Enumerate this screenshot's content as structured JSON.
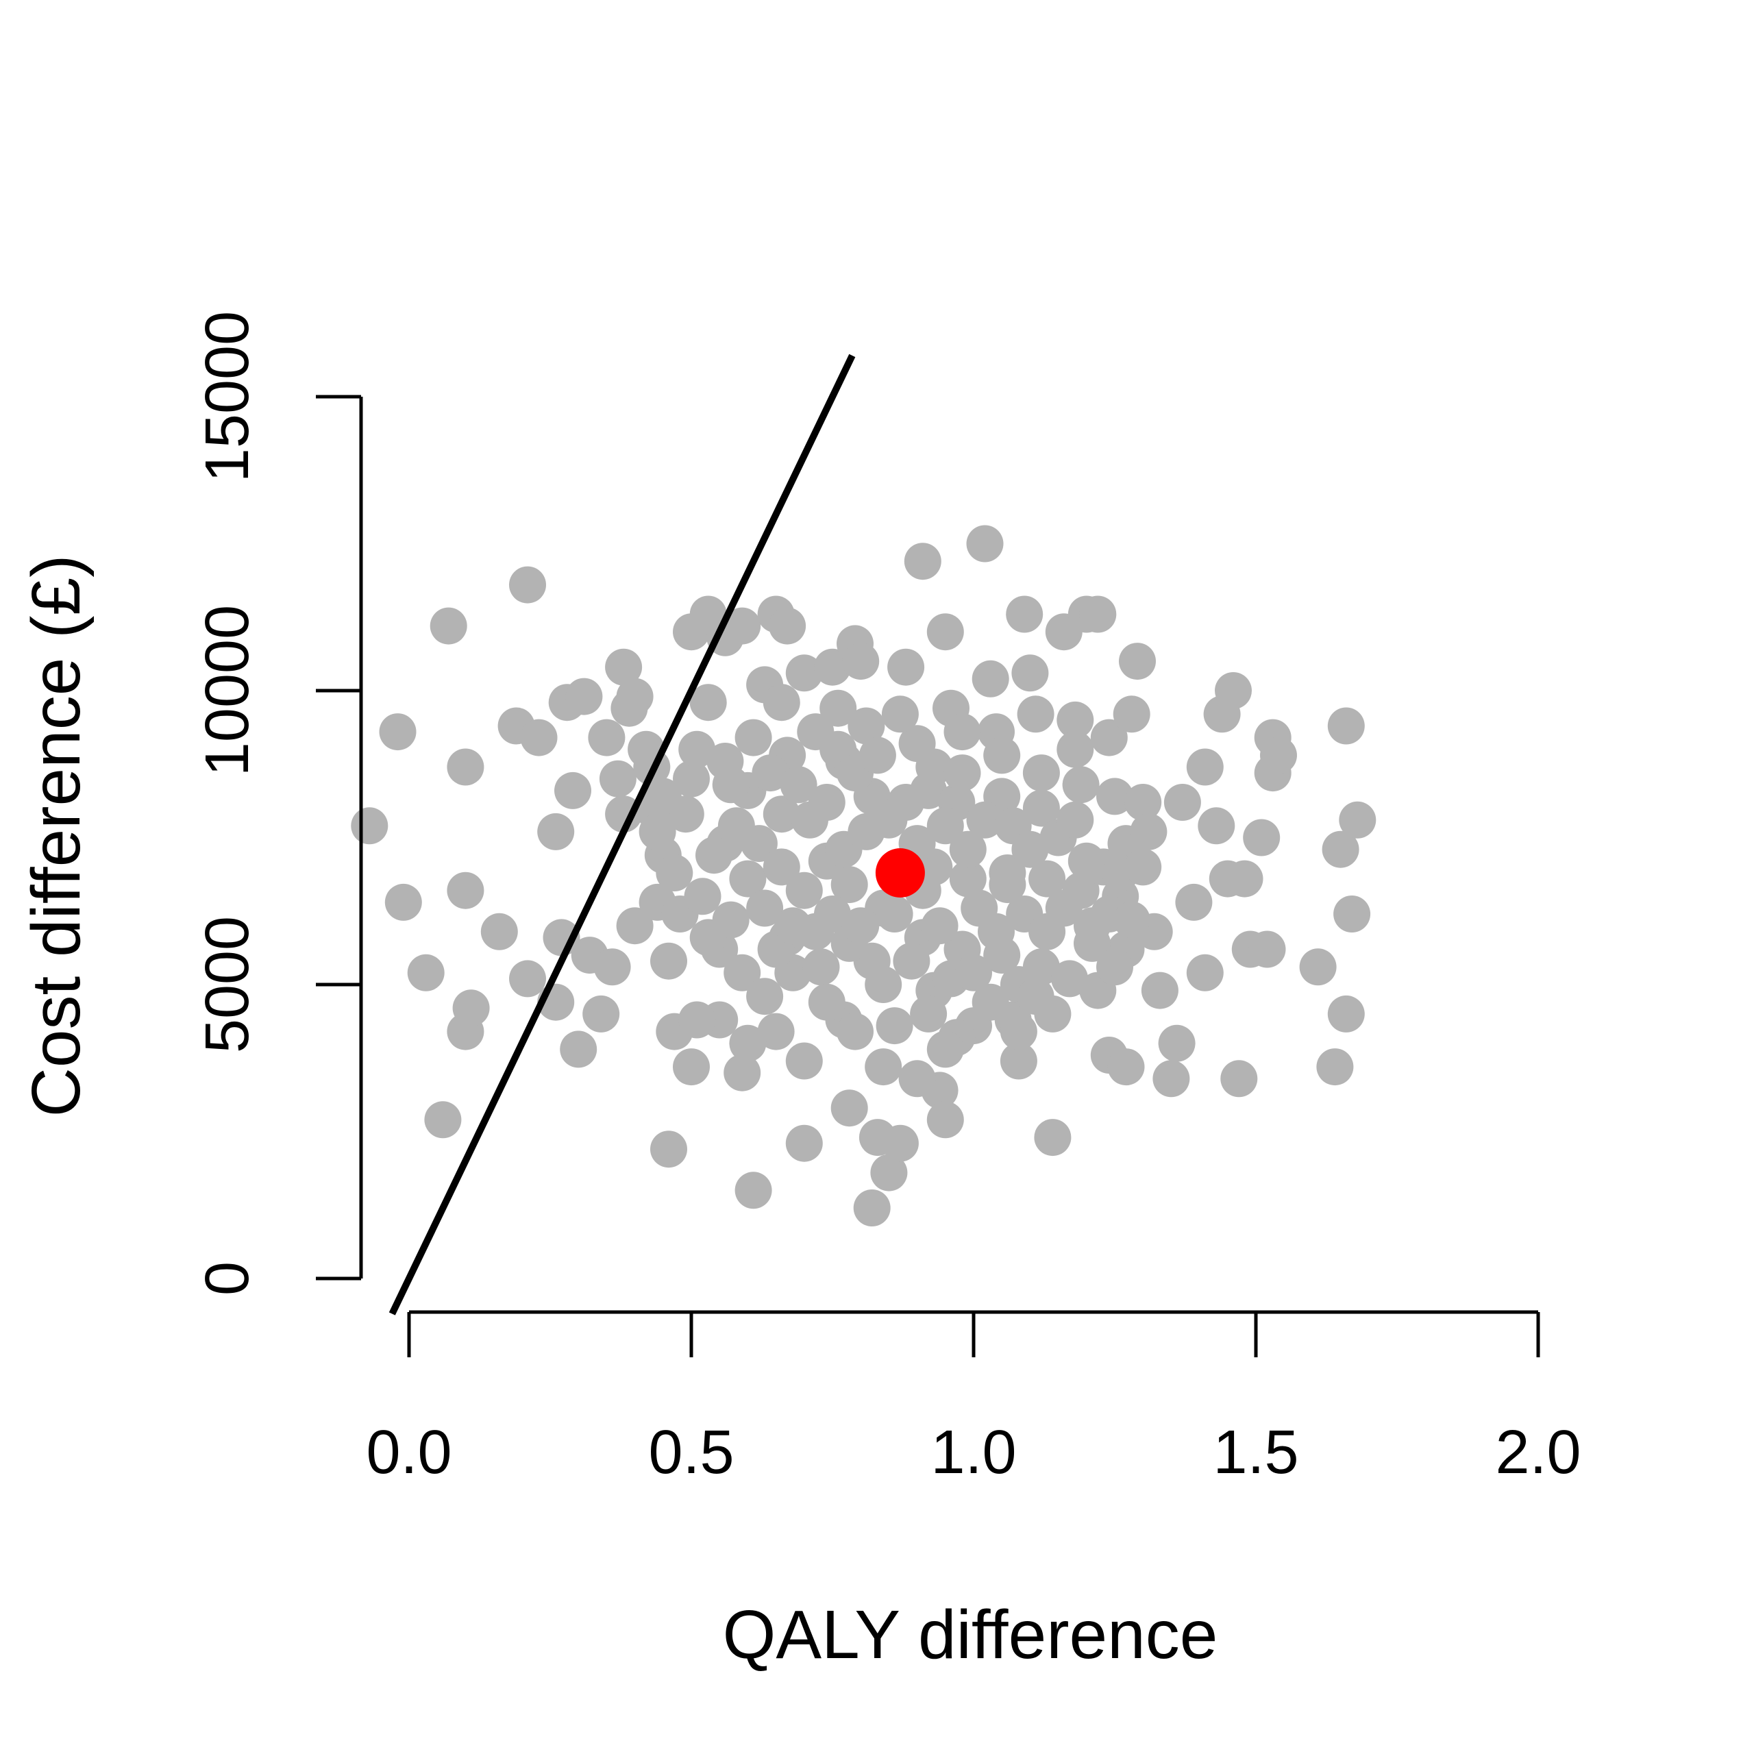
{
  "chart_data": {
    "type": "scatter",
    "title": "",
    "xlabel": "QALY difference",
    "ylabel": "Cost difference (£)",
    "xlim": [
      0,
      2
    ],
    "ylim": [
      0,
      15000
    ],
    "x_ticks": [
      0,
      0.5,
      1,
      1.5,
      2
    ],
    "x_tick_labels": [
      "0.0",
      "0.5",
      "1.0",
      "1.5",
      "2.0"
    ],
    "y_ticks": [
      0,
      5000,
      10000,
      15000
    ],
    "y_tick_labels": [
      "0",
      "5000",
      "10000",
      "15000"
    ],
    "grid": false,
    "colors": {
      "points": "#b3b3b3",
      "mean_point": "#ff0000",
      "threshold_line": "#000000"
    },
    "threshold_line": {
      "slope": 20000,
      "intercept": 0
    },
    "mean_point": {
      "x": 0.87,
      "y": 6900
    },
    "series": [
      {
        "points": [
          [
            -0.07,
            7700
          ],
          [
            -0.02,
            9300
          ],
          [
            -0.01,
            6400
          ],
          [
            0.03,
            5200
          ],
          [
            0.07,
            11100
          ],
          [
            0.06,
            2700
          ],
          [
            0.1,
            8700
          ],
          [
            0.1,
            6600
          ],
          [
            0.1,
            4200
          ],
          [
            0.11,
            4600
          ],
          [
            0.16,
            5900
          ],
          [
            0.19,
            9400
          ],
          [
            0.21,
            11800
          ],
          [
            0.23,
            9200
          ],
          [
            0.21,
            5100
          ],
          [
            0.26,
            7600
          ],
          [
            0.26,
            4700
          ],
          [
            0.29,
            8300
          ],
          [
            0.28,
            9800
          ],
          [
            0.3,
            3900
          ],
          [
            0.27,
            5800
          ],
          [
            0.31,
            9900
          ],
          [
            0.32,
            5500
          ],
          [
            0.34,
            4500
          ],
          [
            0.36,
            5300
          ],
          [
            0.35,
            9200
          ],
          [
            0.37,
            8500
          ],
          [
            0.38,
            10400
          ],
          [
            0.4,
            9900
          ],
          [
            0.38,
            7900
          ],
          [
            0.4,
            6000
          ],
          [
            0.43,
            8700
          ],
          [
            0.44,
            6400
          ],
          [
            0.45,
            7200
          ],
          [
            0.46,
            5400
          ],
          [
            0.47,
            4200
          ],
          [
            0.5,
            3600
          ],
          [
            0.46,
            2200
          ],
          [
            0.5,
            11000
          ],
          [
            0.53,
            11300
          ],
          [
            0.53,
            9800
          ],
          [
            0.56,
            10900
          ],
          [
            0.59,
            11100
          ],
          [
            0.6,
            8300
          ],
          [
            0.56,
            7400
          ],
          [
            0.55,
            5600
          ],
          [
            0.55,
            4400
          ],
          [
            0.59,
            3500
          ],
          [
            0.61,
            1500
          ],
          [
            0.63,
            10100
          ],
          [
            0.65,
            11300
          ],
          [
            0.67,
            11100
          ],
          [
            0.67,
            8900
          ],
          [
            0.66,
            7900
          ],
          [
            0.67,
            5800
          ],
          [
            0.68,
            5200
          ],
          [
            0.65,
            4200
          ],
          [
            0.7,
            3700
          ],
          [
            0.7,
            2300
          ],
          [
            0.7,
            10300
          ],
          [
            0.75,
            10400
          ],
          [
            0.79,
            10800
          ],
          [
            0.77,
            8800
          ],
          [
            0.74,
            7100
          ],
          [
            0.78,
            6700
          ],
          [
            0.72,
            5900
          ],
          [
            0.77,
            4400
          ],
          [
            0.78,
            2900
          ],
          [
            0.8,
            10500
          ],
          [
            0.81,
            9400
          ],
          [
            0.82,
            8200
          ],
          [
            0.84,
            6300
          ],
          [
            0.82,
            5400
          ],
          [
            0.84,
            3600
          ],
          [
            0.83,
            2400
          ],
          [
            0.85,
            1800
          ],
          [
            0.82,
            1200
          ],
          [
            0.88,
            10400
          ],
          [
            0.9,
            9100
          ],
          [
            0.92,
            8300
          ],
          [
            0.93,
            7000
          ],
          [
            0.91,
            5800
          ],
          [
            0.93,
            4900
          ],
          [
            0.94,
            3200
          ],
          [
            0.95,
            2700
          ],
          [
            0.91,
            12200
          ],
          [
            0.95,
            11000
          ],
          [
            0.96,
            9700
          ],
          [
            0.97,
            8100
          ],
          [
            0.99,
            6800
          ],
          [
            0.98,
            5600
          ],
          [
            1,
            4300
          ],
          [
            1.02,
            12500
          ],
          [
            1.03,
            10200
          ],
          [
            1.04,
            9300
          ],
          [
            1.05,
            8200
          ],
          [
            1.06,
            6900
          ],
          [
            1.05,
            5500
          ],
          [
            1.07,
            4400
          ],
          [
            1.08,
            3700
          ],
          [
            1.09,
            11300
          ],
          [
            1.1,
            10300
          ],
          [
            1.11,
            9600
          ],
          [
            1.12,
            8000
          ],
          [
            1.13,
            6800
          ],
          [
            1.12,
            5300
          ],
          [
            1.14,
            4500
          ],
          [
            1.14,
            2400
          ],
          [
            1.16,
            11000
          ],
          [
            1.18,
            9500
          ],
          [
            1.19,
            8400
          ],
          [
            1.2,
            7100
          ],
          [
            1.21,
            6000
          ],
          [
            1.22,
            4900
          ],
          [
            1.2,
            11300
          ],
          [
            1.22,
            11300
          ],
          [
            1.24,
            9200
          ],
          [
            1.25,
            8200
          ],
          [
            1.27,
            7400
          ],
          [
            1.26,
            6500
          ],
          [
            1.27,
            5600
          ],
          [
            1.29,
            10500
          ],
          [
            1.28,
            9600
          ],
          [
            1.3,
            8100
          ],
          [
            1.31,
            7600
          ],
          [
            1.32,
            5900
          ],
          [
            1.33,
            4900
          ],
          [
            1.35,
            3400
          ],
          [
            1.37,
            8100
          ],
          [
            1.36,
            4000
          ],
          [
            1.39,
            6400
          ],
          [
            1.41,
            8700
          ],
          [
            1.41,
            5200
          ],
          [
            1.43,
            7700
          ],
          [
            1.44,
            9600
          ],
          [
            1.45,
            6800
          ],
          [
            1.46,
            10000
          ],
          [
            1.47,
            3400
          ],
          [
            1.48,
            6800
          ],
          [
            1.49,
            5600
          ],
          [
            1.51,
            7500
          ],
          [
            1.52,
            5600
          ],
          [
            1.53,
            9200
          ],
          [
            1.53,
            8600
          ],
          [
            1.54,
            8900
          ],
          [
            1.61,
            5300
          ],
          [
            1.64,
            3600
          ],
          [
            1.65,
            7300
          ],
          [
            1.66,
            9400
          ],
          [
            1.66,
            4500
          ],
          [
            1.67,
            6200
          ],
          [
            1.68,
            7800
          ],
          [
            0.39,
            9700
          ],
          [
            0.42,
            9000
          ],
          [
            0.43,
            8000
          ],
          [
            0.44,
            7600
          ],
          [
            0.47,
            6900
          ],
          [
            0.48,
            6200
          ],
          [
            0.49,
            7900
          ],
          [
            0.5,
            8500
          ],
          [
            0.51,
            9000
          ],
          [
            0.52,
            6500
          ],
          [
            0.53,
            5800
          ],
          [
            0.54,
            7200
          ],
          [
            0.56,
            8800
          ],
          [
            0.57,
            6100
          ],
          [
            0.58,
            7700
          ],
          [
            0.59,
            5200
          ],
          [
            0.6,
            6800
          ],
          [
            0.61,
            9200
          ],
          [
            0.62,
            7400
          ],
          [
            0.63,
            6300
          ],
          [
            0.64,
            8600
          ],
          [
            0.65,
            5600
          ],
          [
            0.66,
            7000
          ],
          [
            0.68,
            6000
          ],
          [
            0.69,
            8400
          ],
          [
            0.7,
            6600
          ],
          [
            0.71,
            7800
          ],
          [
            0.72,
            9300
          ],
          [
            0.73,
            5300
          ],
          [
            0.74,
            8100
          ],
          [
            0.75,
            6200
          ],
          [
            0.76,
            9000
          ],
          [
            0.77,
            7300
          ],
          [
            0.78,
            5700
          ],
          [
            0.79,
            8600
          ],
          [
            0.8,
            6000
          ],
          [
            0.81,
            7600
          ],
          [
            0.83,
            8900
          ],
          [
            0.84,
            5000
          ],
          [
            0.85,
            7800
          ],
          [
            0.86,
            6200
          ],
          [
            0.88,
            8100
          ],
          [
            0.89,
            5400
          ],
          [
            0.9,
            7400
          ],
          [
            0.91,
            6600
          ],
          [
            0.92,
            4500
          ],
          [
            0.93,
            8700
          ],
          [
            0.94,
            6000
          ],
          [
            0.95,
            7700
          ],
          [
            0.96,
            5100
          ],
          [
            0.97,
            4100
          ],
          [
            0.98,
            8600
          ],
          [
            0.99,
            7300
          ],
          [
            1.0,
            5200
          ],
          [
            1.01,
            6300
          ],
          [
            1.02,
            7800
          ],
          [
            1.03,
            4700
          ],
          [
            1.04,
            5900
          ],
          [
            1.06,
            6700
          ],
          [
            1.07,
            7700
          ],
          [
            1.08,
            5000
          ],
          [
            1.09,
            6200
          ],
          [
            1.1,
            7300
          ],
          [
            1.11,
            4800
          ],
          [
            1.13,
            5900
          ],
          [
            1.15,
            7500
          ],
          [
            1.16,
            6300
          ],
          [
            1.17,
            5100
          ],
          [
            1.18,
            7800
          ],
          [
            1.19,
            6600
          ],
          [
            1.21,
            5700
          ],
          [
            1.23,
            7000
          ],
          [
            1.24,
            6200
          ],
          [
            1.25,
            5300
          ],
          [
            1.26,
            6900
          ],
          [
            1.28,
            6100
          ],
          [
            1.3,
            7000
          ],
          [
            1.18,
            9000
          ],
          [
            1.12,
            8600
          ],
          [
            1.05,
            8900
          ],
          [
            0.98,
            9300
          ],
          [
            0.87,
            9600
          ],
          [
            0.76,
            9700
          ],
          [
            0.66,
            9800
          ],
          [
            0.57,
            8400
          ],
          [
            0.45,
            8200
          ],
          [
            0.63,
            4800
          ],
          [
            0.74,
            4700
          ],
          [
            0.86,
            4300
          ],
          [
            0.95,
            3900
          ],
          [
            1.08,
            4200
          ],
          [
            1.24,
            3800
          ],
          [
            1.27,
            3600
          ],
          [
            0.87,
            2300
          ],
          [
            0.9,
            3400
          ],
          [
            0.79,
            4200
          ],
          [
            0.6,
            4000
          ],
          [
            0.51,
            4400
          ]
        ]
      }
    ]
  }
}
